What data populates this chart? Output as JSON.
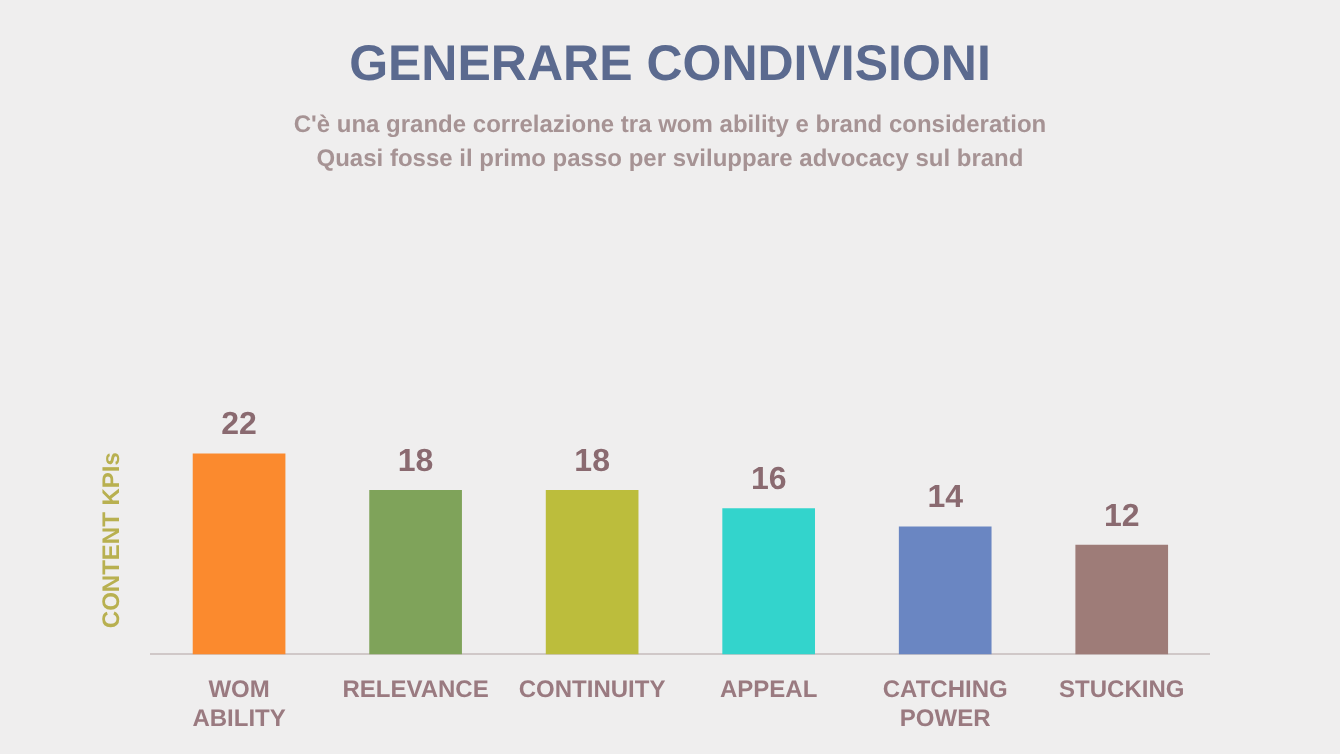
{
  "chart_data": {
    "type": "bar",
    "title": "GENERARE CONDIVISIONI",
    "subtitle": "C'è una grande correlazione tra wom ability e brand consideration\nQuasi fosse il primo passo per sviluppare advocacy sul brand",
    "ylabel": "CONTENT KPIs",
    "categories": [
      "WOM ABILITY",
      "RELEVANCE",
      "CONTINUITY",
      "APPEAL",
      "CATCHING POWER",
      "STUCKING"
    ],
    "values": [
      22,
      18,
      18,
      16,
      14,
      12
    ],
    "colors": [
      "#fb8a2e",
      "#7fa35a",
      "#bcbd3c",
      "#33d4cc",
      "#6a86c2",
      "#9e7c78"
    ],
    "data_labels": true,
    "grid": false,
    "legend": false
  }
}
